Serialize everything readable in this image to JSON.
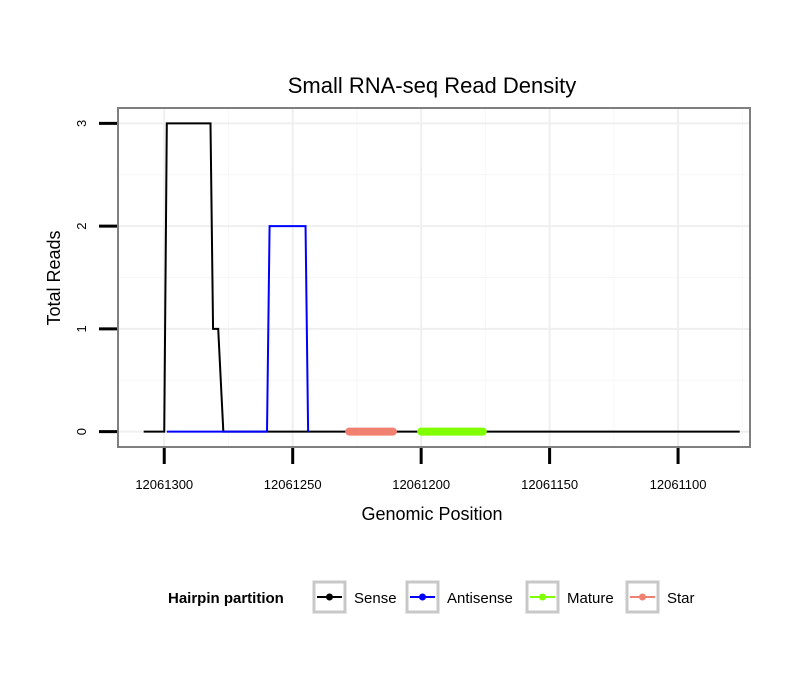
{
  "chart_data": {
    "type": "line",
    "title": "Small RNA-seq Read Density",
    "xlabel": "Genomic Position",
    "ylabel": "Total Reads",
    "xlim": [
      12061318,
      12061072
    ],
    "ylim": [
      -0.15,
      3.15
    ],
    "x_ticks": [
      {
        "value": 12061300,
        "label": "12061300"
      },
      {
        "value": 12061250,
        "label": "12061250"
      },
      {
        "value": 12061200,
        "label": "12061200"
      },
      {
        "value": 12061150,
        "label": "12061150"
      },
      {
        "value": 12061100,
        "label": "12061100"
      }
    ],
    "y_ticks": [
      {
        "value": 0,
        "label": "0"
      },
      {
        "value": 1,
        "label": "1"
      },
      {
        "value": 2,
        "label": "2"
      },
      {
        "value": 3,
        "label": "3"
      }
    ],
    "grid": true,
    "legend": {
      "title": "Hairpin partition",
      "position": "bottom",
      "entries": [
        {
          "name": "Sense",
          "color": "#000000"
        },
        {
          "name": "Antisense",
          "color": "#0000ff"
        },
        {
          "name": "Mature",
          "color": "#7fff00"
        },
        {
          "name": "Star",
          "color": "#f08070"
        }
      ]
    },
    "series": [
      {
        "name": "Sense",
        "color": "#000000",
        "kind": "line",
        "x": [
          12061308,
          12061300,
          12061299,
          12061282,
          12061281,
          12061280,
          12061279,
          12061277,
          12061276,
          12061260,
          12061240,
          12061200,
          12061150,
          12061100,
          12061076
        ],
        "y": [
          0,
          0,
          3,
          3,
          1,
          1,
          1,
          0,
          0,
          0,
          0,
          0,
          0,
          0,
          0
        ]
      },
      {
        "name": "Antisense",
        "color": "#0000ff",
        "kind": "line",
        "x": [
          12061299,
          12061278,
          12061260,
          12061259,
          12061245,
          12061244
        ],
        "y": [
          0,
          0,
          0,
          2,
          2,
          0
        ]
      },
      {
        "name": "Mature",
        "color": "#7fff00",
        "kind": "segment",
        "x": [
          12061200,
          12061176
        ],
        "y": [
          0,
          0
        ]
      },
      {
        "name": "Star",
        "color": "#f08070",
        "kind": "segment",
        "x": [
          12061228,
          12061211
        ],
        "y": [
          0,
          0
        ]
      }
    ]
  }
}
